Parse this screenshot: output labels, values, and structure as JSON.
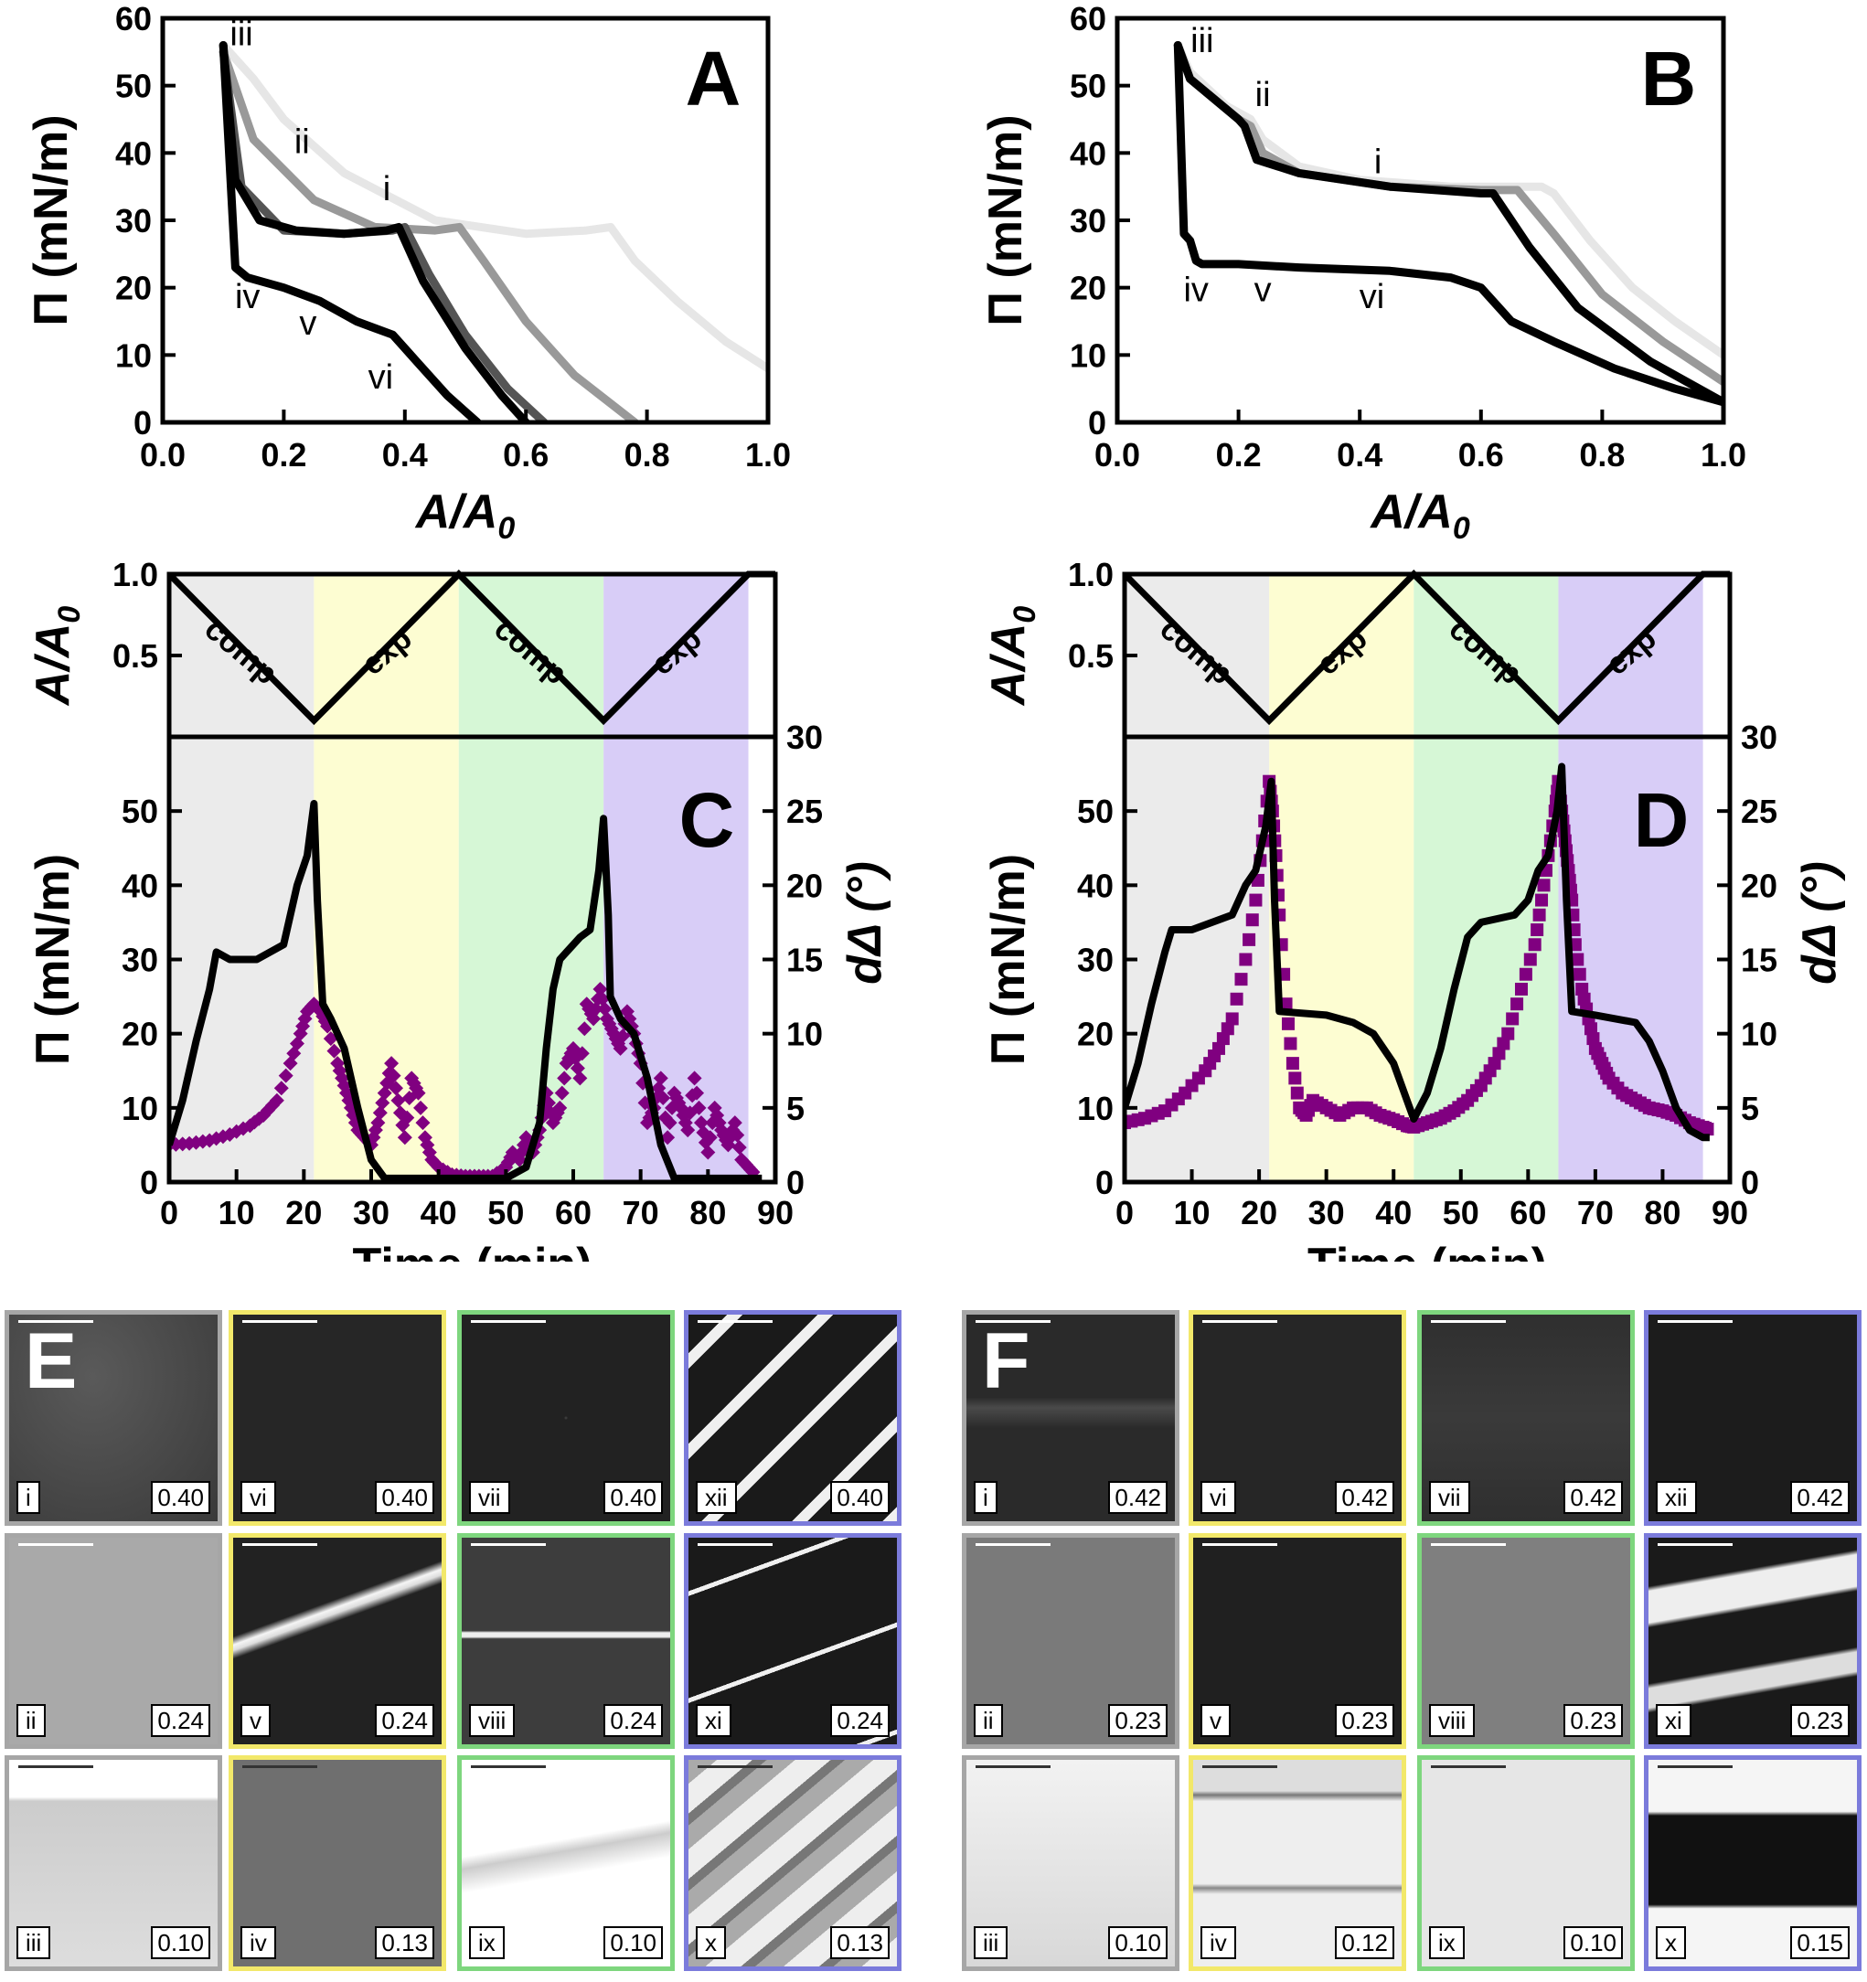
{
  "chart_data": [
    {
      "panel": "A",
      "type": "line",
      "xlabel": "A/A",
      "xlabel_sub": "0",
      "ylabel": "Π (mN/m)",
      "xlim": [
        0,
        1.0
      ],
      "ylim": [
        0,
        60
      ],
      "xticks": [
        "0.0",
        "0.2",
        "0.4",
        "0.6",
        "0.8",
        "1.0"
      ],
      "yticks": [
        "0",
        "10",
        "20",
        "30",
        "40",
        "50",
        "60"
      ],
      "annotations": [
        {
          "text": "iii",
          "x": 0.13,
          "y": 56
        },
        {
          "text": "ii",
          "x": 0.23,
          "y": 40
        },
        {
          "text": "i",
          "x": 0.37,
          "y": 33
        },
        {
          "text": "iv",
          "x": 0.14,
          "y": 17
        },
        {
          "text": "v",
          "x": 0.24,
          "y": 13
        },
        {
          "text": "vi",
          "x": 0.36,
          "y": 5
        }
      ],
      "series": [
        {
          "color": "#e6e6e6",
          "x": [
            0.1,
            0.15,
            0.2,
            0.3,
            0.45,
            0.6,
            0.7,
            0.74,
            0.78,
            0.85,
            0.93,
            1.0
          ],
          "y": [
            56,
            51,
            45,
            37,
            30,
            28,
            28.5,
            29,
            24,
            18,
            12,
            8
          ]
        },
        {
          "color": "#999999",
          "x": [
            0.1,
            0.15,
            0.25,
            0.35,
            0.45,
            0.49,
            0.53,
            0.6,
            0.68,
            0.78
          ],
          "y": [
            55,
            42,
            33,
            29,
            28.5,
            29,
            24,
            15,
            7,
            0
          ]
        },
        {
          "color": "#555555",
          "x": [
            0.1,
            0.13,
            0.2,
            0.3,
            0.38,
            0.4,
            0.44,
            0.5,
            0.57,
            0.63
          ],
          "y": [
            55,
            35,
            28.5,
            28,
            28.5,
            29,
            22,
            13,
            5,
            0
          ]
        },
        {
          "color": "#000000",
          "x": [
            0.1,
            0.12,
            0.16,
            0.22,
            0.3,
            0.37,
            0.39,
            0.43,
            0.5,
            0.56,
            0.6
          ],
          "y": [
            56,
            36,
            30,
            28.5,
            28,
            28.5,
            29,
            21,
            11,
            4,
            0
          ]
        },
        {
          "color": "#000000",
          "x": [
            0.1,
            0.12,
            0.14,
            0.2,
            0.26,
            0.32,
            0.35,
            0.38,
            0.42,
            0.47,
            0.52
          ],
          "y": [
            56,
            23,
            21.5,
            20,
            18,
            15,
            14,
            13,
            9,
            4,
            0
          ]
        }
      ]
    },
    {
      "panel": "B",
      "type": "line",
      "xlabel": "A/A",
      "xlabel_sub": "0",
      "ylabel": "Π (mN/m)",
      "xlim": [
        0,
        1.0
      ],
      "ylim": [
        0,
        60
      ],
      "xticks": [
        "0.0",
        "0.2",
        "0.4",
        "0.6",
        "0.8",
        "1.0"
      ],
      "yticks": [
        "0",
        "10",
        "20",
        "30",
        "40",
        "50",
        "60"
      ],
      "annotations": [
        {
          "text": "iii",
          "x": 0.14,
          "y": 55
        },
        {
          "text": "ii",
          "x": 0.24,
          "y": 47
        },
        {
          "text": "i",
          "x": 0.43,
          "y": 37
        },
        {
          "text": "iv",
          "x": 0.13,
          "y": 18
        },
        {
          "text": "v",
          "x": 0.24,
          "y": 18
        },
        {
          "text": "vi",
          "x": 0.42,
          "y": 17
        }
      ],
      "series": [
        {
          "color": "#e6e6e6",
          "x": [
            0.1,
            0.12,
            0.18,
            0.22,
            0.24,
            0.3,
            0.4,
            0.55,
            0.7,
            0.72,
            0.78,
            0.85,
            0.92,
            1.0
          ],
          "y": [
            56,
            52,
            47,
            45,
            42,
            38,
            36,
            35,
            35,
            34,
            27,
            20,
            15,
            10
          ]
        },
        {
          "color": "#999999",
          "x": [
            0.1,
            0.12,
            0.2,
            0.22,
            0.24,
            0.3,
            0.45,
            0.6,
            0.66,
            0.72,
            0.8,
            0.9,
            1.0
          ],
          "y": [
            56,
            51,
            45,
            44,
            40,
            37,
            35,
            34.5,
            34.5,
            28,
            19,
            12,
            6
          ]
        },
        {
          "color": "#000000",
          "x": [
            0.1,
            0.12,
            0.2,
            0.21,
            0.23,
            0.3,
            0.45,
            0.6,
            0.62,
            0.68,
            0.76,
            0.88,
            1.0
          ],
          "y": [
            56,
            51,
            45,
            44,
            39,
            37,
            35,
            34,
            34,
            26,
            17,
            9,
            3
          ]
        },
        {
          "color": "#000000",
          "x": [
            0.1,
            0.11,
            0.12,
            0.13,
            0.14,
            0.2,
            0.3,
            0.45,
            0.55,
            0.6,
            0.65,
            0.72,
            0.82,
            0.92,
            1.0
          ],
          "y": [
            56,
            28,
            27,
            24,
            23.5,
            23.5,
            23,
            22.5,
            21.5,
            20,
            15,
            12,
            8,
            5,
            3
          ]
        }
      ]
    },
    {
      "panel": "C",
      "type": "line",
      "xlabel": "Time (min)",
      "ylabel": "Π (mN/m)",
      "ylabel_right": "dΔ (°)",
      "top_ylabel": "A/A",
      "top_ylabel_sub": "0",
      "xlim": [
        0,
        90
      ],
      "ylim": [
        0,
        60
      ],
      "ylim_right": [
        0,
        30
      ],
      "top_ylim": [
        0,
        1.0
      ],
      "xticks": [
        "0",
        "10",
        "20",
        "30",
        "40",
        "50",
        "60",
        "70",
        "80",
        "90"
      ],
      "yticks": [
        "0",
        "10",
        "20",
        "30",
        "40",
        "50"
      ],
      "yticks_right": [
        "0",
        "5",
        "10",
        "15",
        "20",
        "25",
        "30"
      ],
      "top_yticks": [
        "0.5",
        "1.0"
      ],
      "phases": [
        {
          "label": "comp",
          "from": 0,
          "to": 21.5,
          "color": "#ebebeb"
        },
        {
          "label": "exp",
          "from": 21.5,
          "to": 43,
          "color": "#fdfdd2"
        },
        {
          "label": "comp",
          "from": 43,
          "to": 64.5,
          "color": "#d6f7d6"
        },
        {
          "label": "exp",
          "from": 64.5,
          "to": 86,
          "color": "#d8cdf7"
        }
      ],
      "area": {
        "t": [
          0,
          21.5,
          43,
          64.5,
          86,
          90
        ],
        "a": [
          1.0,
          0.1,
          1.0,
          0.1,
          1.0,
          1.0
        ]
      },
      "pressure": {
        "t": [
          0,
          2,
          4,
          6,
          7,
          9,
          13,
          17,
          19,
          20.5,
          21.5,
          22,
          22.8,
          24,
          26,
          28,
          30,
          32,
          40,
          50,
          53,
          55,
          56,
          57,
          58,
          59,
          61,
          62.5,
          63.8,
          64.5,
          65.2,
          65.5,
          67,
          69,
          71,
          73,
          75,
          80,
          88
        ],
        "p": [
          5,
          11,
          19,
          26,
          31,
          30,
          30,
          32,
          40,
          44,
          51,
          38,
          24,
          22,
          18,
          10,
          3,
          0.5,
          0.5,
          0.5,
          2,
          8,
          18,
          26,
          30,
          31,
          33,
          34,
          42,
          49,
          36,
          25,
          22,
          20,
          14,
          5,
          0.5,
          0.5,
          0.5
        ]
      },
      "ddelta": {
        "color": "#800080",
        "t": [
          0,
          3,
          6,
          9,
          12,
          14,
          16,
          18,
          19.5,
          20.5,
          21.5,
          22.5,
          23.5,
          25,
          26,
          27,
          28,
          29,
          30,
          31,
          32,
          33,
          34,
          35,
          36,
          37,
          38,
          39,
          40,
          42,
          44,
          46,
          48,
          50,
          51,
          52,
          53,
          54,
          55,
          56,
          57,
          58,
          59,
          60,
          61,
          62,
          63,
          64,
          65,
          66,
          67,
          68,
          69,
          70,
          71,
          72,
          73,
          74,
          75,
          76,
          77,
          78,
          79,
          80,
          81,
          82,
          83,
          84,
          85,
          86,
          87
        ],
        "v": [
          2.5,
          2.6,
          2.8,
          3.2,
          3.8,
          4.5,
          5.5,
          8,
          10,
          11.5,
          12,
          11.5,
          10.5,
          8,
          6.5,
          5,
          3.5,
          3,
          2.5,
          4,
          6,
          8,
          5.5,
          3,
          7,
          6,
          3,
          1.5,
          1,
          0.5,
          0.4,
          0.4,
          0.4,
          1,
          2,
          1.5,
          3,
          2,
          3.5,
          6,
          4,
          5,
          8,
          9,
          7,
          12,
          11,
          13,
          11,
          10,
          9,
          11.5,
          10,
          8,
          4,
          5,
          7,
          3,
          6,
          5,
          3.5,
          7,
          4,
          2,
          5,
          3.5,
          2.5,
          4,
          1.5,
          1,
          0.5
        ]
      }
    },
    {
      "panel": "D",
      "type": "line",
      "xlabel": "Time (min)",
      "ylabel": "Π (mN/m)",
      "ylabel_right": "dΔ (°)",
      "top_ylabel": "A/A",
      "top_ylabel_sub": "0",
      "xlim": [
        0,
        90
      ],
      "ylim": [
        0,
        60
      ],
      "ylim_right": [
        0,
        30
      ],
      "top_ylim": [
        0,
        1.0
      ],
      "xticks": [
        "0",
        "10",
        "20",
        "30",
        "40",
        "50",
        "60",
        "70",
        "80",
        "90"
      ],
      "yticks": [
        "0",
        "10",
        "20",
        "30",
        "40",
        "50"
      ],
      "yticks_right": [
        "0",
        "5",
        "10",
        "15",
        "20",
        "25",
        "30"
      ],
      "top_yticks": [
        "0.5",
        "1.0"
      ],
      "phases": [
        {
          "label": "comp",
          "from": 0,
          "to": 21.5,
          "color": "#ebebeb"
        },
        {
          "label": "exp",
          "from": 21.5,
          "to": 43,
          "color": "#fdfdd2"
        },
        {
          "label": "comp",
          "from": 43,
          "to": 64.5,
          "color": "#d6f7d6"
        },
        {
          "label": "exp",
          "from": 64.5,
          "to": 86,
          "color": "#d8cdf7"
        }
      ],
      "area": {
        "t": [
          0,
          21.5,
          43,
          64.5,
          86,
          90
        ],
        "a": [
          1.0,
          0.1,
          1.0,
          0.1,
          1.0,
          1.0
        ]
      },
      "pressure": {
        "t": [
          0,
          2,
          4,
          6,
          7,
          10,
          16,
          18,
          19.5,
          21,
          21.8,
          22.3,
          23,
          30,
          34,
          37,
          40,
          42,
          43,
          45,
          47,
          49,
          51,
          53,
          58,
          60,
          61.5,
          63,
          64.3,
          65,
          65.7,
          66.5,
          70,
          76,
          78,
          80,
          82,
          84,
          86,
          87
        ],
        "p": [
          10,
          16,
          24,
          31,
          34,
          34,
          36,
          40,
          42,
          48,
          54,
          38,
          23,
          22.5,
          21.5,
          20,
          16,
          11,
          8.5,
          12,
          18,
          26,
          33,
          35,
          36,
          38,
          42,
          44,
          50,
          56,
          38,
          23,
          22.5,
          21.5,
          19,
          15,
          10,
          7,
          6,
          6
        ]
      },
      "ddelta": {
        "color": "#800080",
        "t": [
          0,
          3,
          6,
          9,
          12,
          14,
          16,
          18,
          19.5,
          20.5,
          21.5,
          22,
          22.5,
          23,
          24,
          25,
          26,
          27,
          28,
          30,
          32,
          34,
          36,
          38,
          40,
          42,
          43,
          45,
          47,
          49,
          51,
          53,
          55,
          57,
          59,
          61,
          62,
          63,
          64,
          64.5,
          65,
          65.5,
          66,
          66.5,
          67,
          68,
          69,
          70,
          71,
          72,
          74,
          76,
          78,
          80,
          82,
          84,
          86,
          87
        ],
        "v": [
          4,
          4.3,
          4.8,
          6,
          7.5,
          9,
          11,
          15,
          19,
          23,
          27,
          25,
          22,
          18,
          12,
          8,
          5,
          4.5,
          5.5,
          5,
          4.5,
          5,
          5,
          4.5,
          4.2,
          3.8,
          3.7,
          4,
          4.3,
          4.8,
          5.5,
          6.5,
          8,
          10,
          13,
          16,
          19,
          22,
          25,
          27,
          25,
          23,
          21,
          19,
          16,
          13,
          11,
          9,
          8,
          7,
          6,
          5.5,
          5,
          4.8,
          4.5,
          4,
          3.7,
          3.5
        ]
      }
    }
  ],
  "panel_labels": {
    "A": "A",
    "B": "B",
    "C": "C",
    "D": "D",
    "E": "E",
    "F": "F"
  },
  "images": {
    "E": {
      "rows": [
        [
          {
            "label": "i",
            "value": "0.40"
          },
          {
            "label": "vi",
            "value": "0.40"
          },
          {
            "label": "vii",
            "value": "0.40"
          },
          {
            "label": "xii",
            "value": "0.40"
          }
        ],
        [
          {
            "label": "ii",
            "value": "0.24"
          },
          {
            "label": "v",
            "value": "0.24"
          },
          {
            "label": "viii",
            "value": "0.24"
          },
          {
            "label": "xi",
            "value": "0.24"
          }
        ],
        [
          {
            "label": "iii",
            "value": "0.10"
          },
          {
            "label": "iv",
            "value": "0.13"
          },
          {
            "label": "ix",
            "value": "0.10"
          },
          {
            "label": "x",
            "value": "0.13"
          }
        ]
      ]
    },
    "F": {
      "rows": [
        [
          {
            "label": "i",
            "value": "0.42"
          },
          {
            "label": "vi",
            "value": "0.42"
          },
          {
            "label": "vii",
            "value": "0.42"
          },
          {
            "label": "xii",
            "value": "0.42"
          }
        ],
        [
          {
            "label": "ii",
            "value": "0.23"
          },
          {
            "label": "v",
            "value": "0.23"
          },
          {
            "label": "viii",
            "value": "0.23"
          },
          {
            "label": "xi",
            "value": "0.23"
          }
        ],
        [
          {
            "label": "iii",
            "value": "0.10"
          },
          {
            "label": "iv",
            "value": "0.12"
          },
          {
            "label": "ix",
            "value": "0.10"
          },
          {
            "label": "x",
            "value": "0.15"
          }
        ]
      ]
    },
    "column_colors": [
      "#a6a6a6",
      "#f2e86a",
      "#7ed67e",
      "#7b7bdb"
    ]
  }
}
